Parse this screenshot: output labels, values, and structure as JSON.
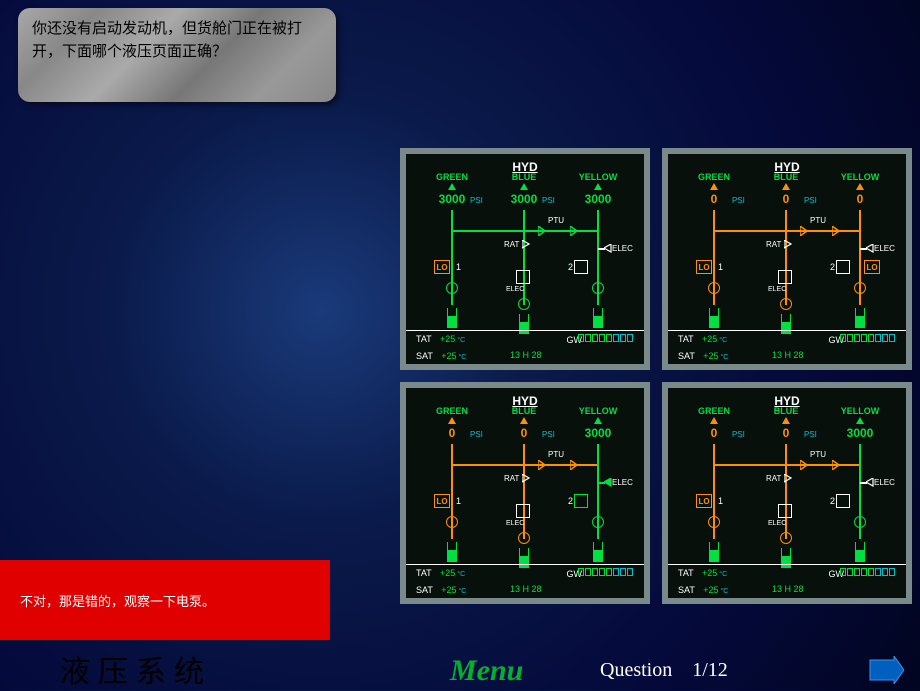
{
  "question": {
    "text": "你还没有启动发动机，但货舱门正在被打开，下面哪个液压页面正确？"
  },
  "feedback": {
    "text": "不对，那是错的，观察一下电泵。"
  },
  "footer": {
    "section_title": "液压系统",
    "menu_label": "Menu",
    "question_label": "Question",
    "counter": "1/12"
  },
  "common": {
    "hyd_title": "HYD",
    "green_label": "GREEN",
    "blue_label": "BLUE",
    "yellow_label": "YELLOW",
    "psi": "PSI",
    "ptu": "PTU",
    "rat": "RAT",
    "elec": "ELEC",
    "lo": "LO",
    "tat_label": "TAT",
    "sat_label": "SAT",
    "tat_val": "+25",
    "sat_val": "+25",
    "tc": "°C",
    "time": "13 H 28",
    "gw_label": "GW",
    "num1": "1",
    "num2": "2"
  },
  "panels": [
    {
      "green": "3000",
      "green_ok": true,
      "blue": "3000",
      "blue_ok": true,
      "yellow": "3000",
      "yellow_ok": true,
      "ptu_active": true,
      "yellow_elec_on": false
    },
    {
      "green": "0",
      "green_ok": false,
      "blue": "0",
      "blue_ok": false,
      "yellow": "0",
      "yellow_ok": false,
      "ptu_active": false,
      "yellow_elec_on": false
    },
    {
      "green": "0",
      "green_ok": false,
      "blue": "0",
      "blue_ok": false,
      "yellow": "3000",
      "yellow_ok": true,
      "ptu_active": false,
      "yellow_elec_on": true
    },
    {
      "green": "0",
      "green_ok": false,
      "blue": "0",
      "blue_ok": false,
      "yellow": "3000",
      "yellow_ok": true,
      "ptu_active": false,
      "yellow_elec_on": false
    }
  ],
  "colors": {
    "ok_green": "#00e040",
    "amber": "#ff9000",
    "cyan": "#00c0d0",
    "panel_bg": "#08100c",
    "panel_border": "#7a8a8a",
    "feedback_bg": "#e00000"
  }
}
